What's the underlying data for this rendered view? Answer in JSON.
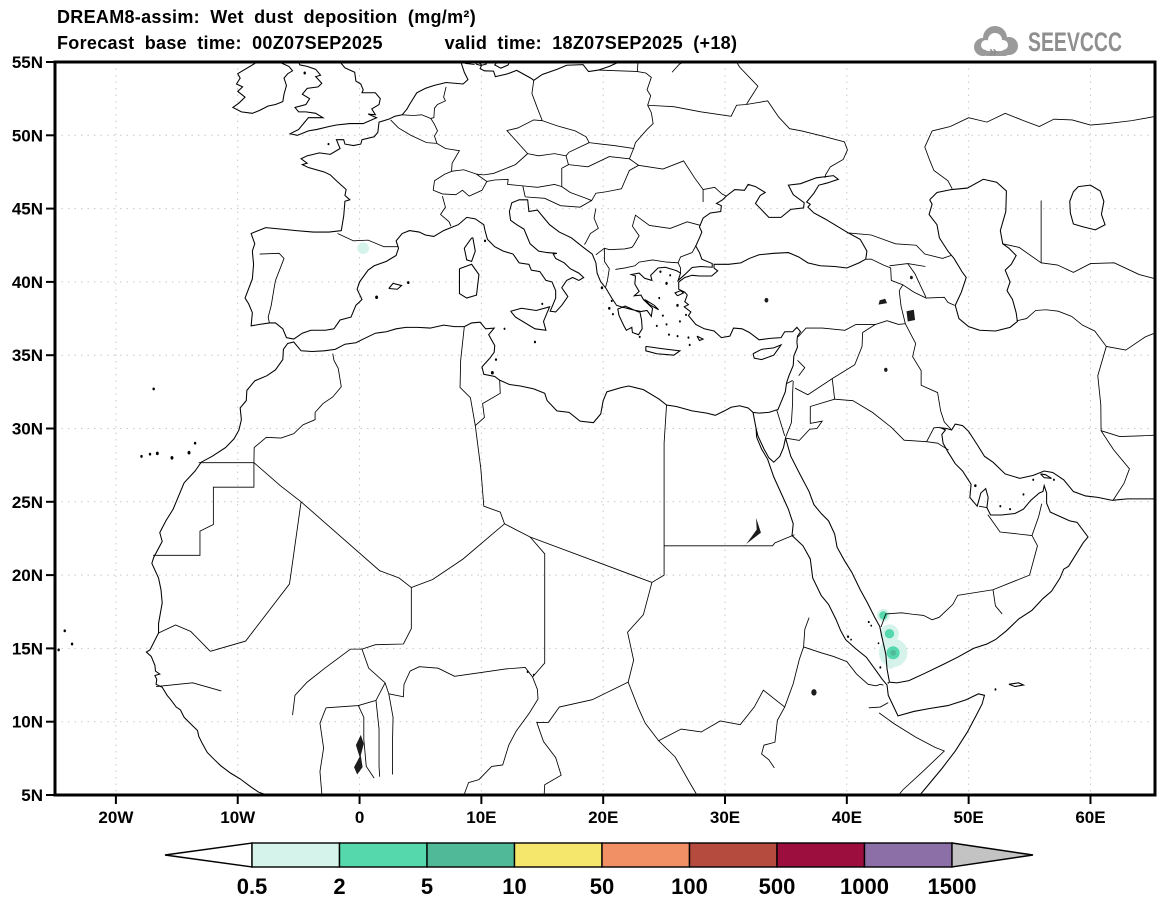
{
  "header": {
    "title": "DREAM8-assim: Wet dust deposition (mg/m²)",
    "forecast_base_label": "Forecast base time:",
    "forecast_base_value": "00Z07SEP2025",
    "valid_label": "valid time:",
    "valid_value": "18Z07SEP2025 (+18)"
  },
  "logo": {
    "text": "SEEVCCC",
    "icon": "cloud-icon",
    "color": "#8f8f8f"
  },
  "axes": {
    "lat_ticks": [
      {
        "label": "55N",
        "lat": 55
      },
      {
        "label": "50N",
        "lat": 50
      },
      {
        "label": "45N",
        "lat": 45
      },
      {
        "label": "40N",
        "lat": 40
      },
      {
        "label": "35N",
        "lat": 35
      },
      {
        "label": "30N",
        "lat": 30
      },
      {
        "label": "25N",
        "lat": 25
      },
      {
        "label": "20N",
        "lat": 20
      },
      {
        "label": "15N",
        "lat": 15
      },
      {
        "label": "10N",
        "lat": 10
      },
      {
        "label": "5N",
        "lat": 5
      }
    ],
    "lon_ticks": [
      {
        "label": "20W",
        "lon": -20
      },
      {
        "label": "10W",
        "lon": -10
      },
      {
        "label": "0",
        "lon": 0
      },
      {
        "label": "10E",
        "lon": 10
      },
      {
        "label": "20E",
        "lon": 20
      },
      {
        "label": "30E",
        "lon": 30
      },
      {
        "label": "40E",
        "lon": 40
      },
      {
        "label": "50E",
        "lon": 50
      },
      {
        "label": "60E",
        "lon": 60
      }
    ]
  },
  "grid": {
    "lons": [
      -20,
      -10,
      0,
      10,
      20,
      30,
      40,
      50,
      60
    ],
    "lats": [
      10,
      15,
      20,
      25,
      30,
      35,
      40,
      45,
      50
    ]
  },
  "chart_data": {
    "type": "map-contour",
    "model": "DREAM8-assim",
    "variable": "Wet dust deposition",
    "units": "mg/m²",
    "forecast_base_time": "00Z07SEP2025",
    "valid_time": "18Z07SEP2025",
    "forecast_hour": "+18",
    "domain": {
      "lon_min": -25,
      "lon_max": 65.3,
      "lat_min": 5,
      "lat_max": 55
    },
    "colorbar": {
      "labels": [
        "0.5",
        "2",
        "5",
        "10",
        "50",
        "100",
        "500",
        "1000",
        "1500"
      ],
      "levels": [
        0.5,
        2,
        5,
        10,
        50,
        100,
        500,
        1000,
        1500
      ],
      "colors": [
        "#d5f3ea",
        "#56d8ad",
        "#4fb998",
        "#f5e76c",
        "#f19064",
        "#b54a3e",
        "#9c0e3e",
        "#8d6fa8"
      ],
      "under_color": "#ffffff",
      "over_color": "#c3c3c3"
    },
    "deposition_patches": [
      {
        "lon": 0.3,
        "lat": 42.3,
        "rings": [
          {
            "value_range": "0.5-2",
            "color": "#d5f3ea",
            "radius_deg": 0.45
          }
        ]
      },
      {
        "lon": 43.0,
        "lat": 17.25,
        "rings": [
          {
            "value_range": "0.5-2",
            "color": "#d5f3ea",
            "radius_deg": 0.5
          },
          {
            "value_range": "2-5",
            "color": "#56d8ad",
            "radius_deg": 0.32
          }
        ]
      },
      {
        "lon": 43.5,
        "lat": 16.0,
        "rings": [
          {
            "value_range": "0.5-2",
            "color": "#d5f3ea",
            "radius_deg": 0.72
          },
          {
            "value_range": "2-5",
            "color": "#56d8ad",
            "radius_deg": 0.36
          }
        ]
      },
      {
        "lon": 43.8,
        "lat": 14.7,
        "rings": [
          {
            "value_range": "0.5-2",
            "color": "#d5f3ea",
            "radius_deg": 1.1
          },
          {
            "value_range": "2-5",
            "color": "#56d8ad",
            "radius_deg": 0.5
          },
          {
            "value_range": "5-10",
            "color": "#4fb998",
            "radius_deg": 0.22
          }
        ]
      },
      {
        "lon": 43.6,
        "lat": 13.85,
        "rings": [
          {
            "value_range": "0.5-2",
            "color": "#d5f3ea",
            "radius_deg": 0.28
          }
        ]
      }
    ]
  }
}
